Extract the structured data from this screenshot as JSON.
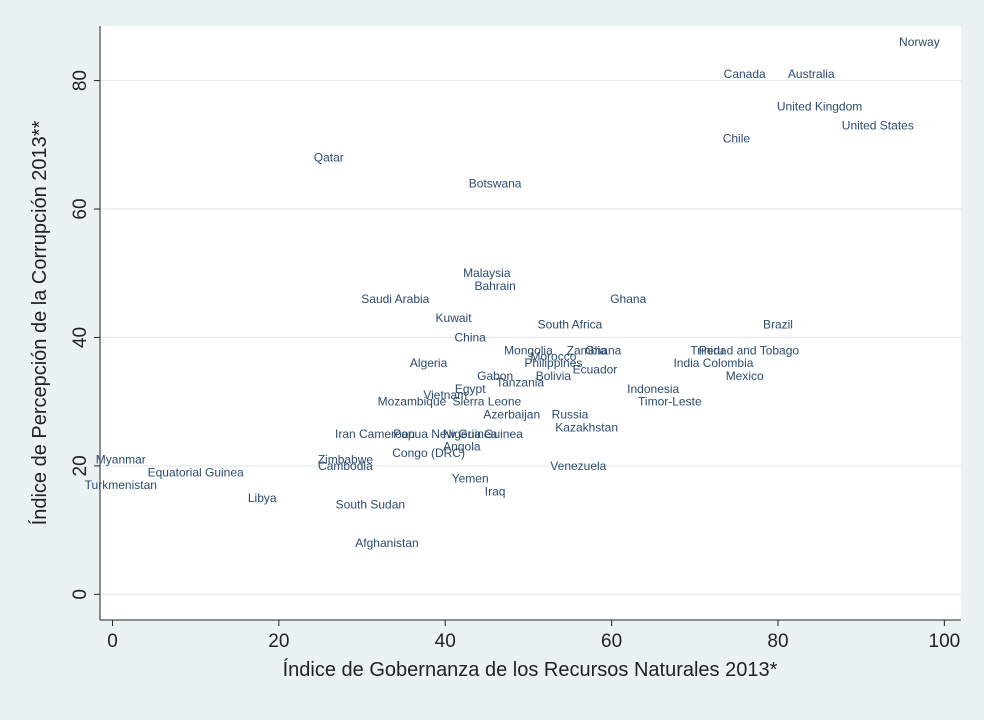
{
  "chart_data": {
    "type": "scatter",
    "title": "",
    "xlabel": "Índice de Gobernanza de los Recursos Naturales 2013*",
    "ylabel": "Índice de Percepción de la Corrupción 2013**",
    "xlim": [
      -1.5,
      102
    ],
    "ylim": [
      -4,
      88.5
    ],
    "xticks": [
      0,
      20,
      40,
      60,
      80,
      100
    ],
    "yticks": [
      0,
      20,
      40,
      60,
      80
    ],
    "grid": "horizontal",
    "marker": "country-name label only",
    "colors": {
      "label": "#2c4a6e",
      "plot_background": "#ffffff",
      "figure_background": "#eaf2f3",
      "grid": "#e3ebec",
      "axis": "#222222"
    },
    "points": [
      {
        "label": "Norway",
        "x": 97,
        "y": 86
      },
      {
        "label": "Canada",
        "x": 76,
        "y": 81
      },
      {
        "label": "Australia",
        "x": 84,
        "y": 81
      },
      {
        "label": "United Kingdom",
        "x": 85,
        "y": 76
      },
      {
        "label": "United States",
        "x": 92,
        "y": 73
      },
      {
        "label": "Chile",
        "x": 75,
        "y": 71
      },
      {
        "label": "Qatar",
        "x": 26,
        "y": 68
      },
      {
        "label": "Botswana",
        "x": 46,
        "y": 64
      },
      {
        "label": "Malaysia",
        "x": 45,
        "y": 50
      },
      {
        "label": "Bahrain",
        "x": 46,
        "y": 48
      },
      {
        "label": "Saudi Arabia",
        "x": 34,
        "y": 46
      },
      {
        "label": "Ghana",
        "x": 62,
        "y": 46
      },
      {
        "label": "Kuwait",
        "x": 41,
        "y": 43
      },
      {
        "label": "South Africa",
        "x": 55,
        "y": 42
      },
      {
        "label": "Brazil",
        "x": 80,
        "y": 42
      },
      {
        "label": "China",
        "x": 43,
        "y": 40
      },
      {
        "label": "Mongolia",
        "x": 50,
        "y": 38
      },
      {
        "label": "Zambia",
        "x": 57,
        "y": 38
      },
      {
        "label": "Ghana",
        "x": 59,
        "y": 38
      },
      {
        "label": "Trinidad and Tobago",
        "x": 76,
        "y": 38
      },
      {
        "label": "Peru",
        "x": 72,
        "y": 38
      },
      {
        "label": "Morocco",
        "x": 53,
        "y": 37
      },
      {
        "label": "Algeria",
        "x": 38,
        "y": 36
      },
      {
        "label": "Philippines",
        "x": 53,
        "y": 36
      },
      {
        "label": "India",
        "x": 69,
        "y": 36
      },
      {
        "label": "Colombia",
        "x": 74,
        "y": 36
      },
      {
        "label": "Ecuador",
        "x": 58,
        "y": 35
      },
      {
        "label": "Gabon",
        "x": 46,
        "y": 34
      },
      {
        "label": "Bolivia",
        "x": 53,
        "y": 34
      },
      {
        "label": "Mexico",
        "x": 76,
        "y": 34
      },
      {
        "label": "Tanzania",
        "x": 49,
        "y": 33
      },
      {
        "label": "Egypt",
        "x": 43,
        "y": 32
      },
      {
        "label": "Indonesia",
        "x": 65,
        "y": 32
      },
      {
        "label": "Vietnam",
        "x": 40,
        "y": 31
      },
      {
        "label": "Mozambique",
        "x": 36,
        "y": 30
      },
      {
        "label": "Sierra Leone",
        "x": 45,
        "y": 30
      },
      {
        "label": "Timor-Leste",
        "x": 67,
        "y": 30
      },
      {
        "label": "Azerbaijan",
        "x": 48,
        "y": 28
      },
      {
        "label": "Russia",
        "x": 55,
        "y": 28
      },
      {
        "label": "Kazakhstan",
        "x": 57,
        "y": 26
      },
      {
        "label": "Iraq",
        "x": 46,
        "y": 16
      },
      {
        "label": "Iran",
        "x": 28,
        "y": 25
      },
      {
        "label": "Cameroon",
        "x": 33,
        "y": 25
      },
      {
        "label": "Papua New Guinea",
        "x": 40,
        "y": 25
      },
      {
        "label": "Nigeria",
        "x": 42,
        "y": 25
      },
      {
        "label": "Guinea",
        "x": 47,
        "y": 25
      },
      {
        "label": "Angola",
        "x": 42,
        "y": 23
      },
      {
        "label": "Congo (DRC)",
        "x": 38,
        "y": 22
      },
      {
        "label": "Zimbabwe",
        "x": 28,
        "y": 21
      },
      {
        "label": "Cambodia",
        "x": 28,
        "y": 20
      },
      {
        "label": "Venezuela",
        "x": 56,
        "y": 20
      },
      {
        "label": "Myanmar",
        "x": 1,
        "y": 21
      },
      {
        "label": "Equatorial Guinea",
        "x": 10,
        "y": 19
      },
      {
        "label": "Yemen",
        "x": 43,
        "y": 18
      },
      {
        "label": "Turkmenistan",
        "x": 1,
        "y": 17
      },
      {
        "label": "Libya",
        "x": 18,
        "y": 15
      },
      {
        "label": "South Sudan",
        "x": 31,
        "y": 14
      },
      {
        "label": "Afghanistan",
        "x": 33,
        "y": 8
      }
    ]
  }
}
